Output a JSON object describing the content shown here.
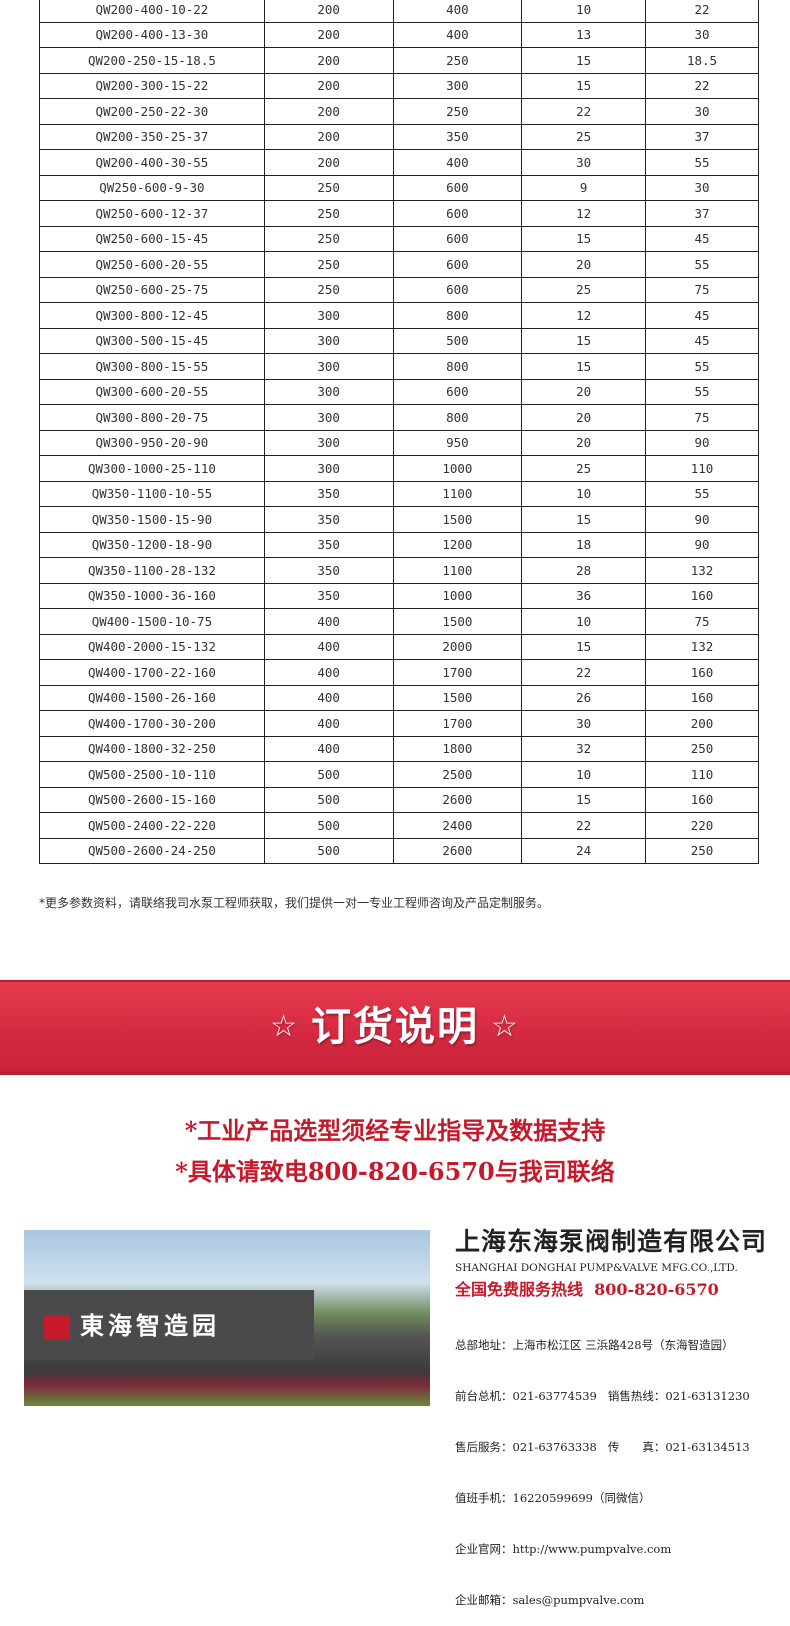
{
  "table": {
    "rows": [
      [
        "QW200-400-10-22",
        "200",
        "400",
        "10",
        "22"
      ],
      [
        "QW200-400-13-30",
        "200",
        "400",
        "13",
        "30"
      ],
      [
        "QW200-250-15-18.5",
        "200",
        "250",
        "15",
        "18.5"
      ],
      [
        "QW200-300-15-22",
        "200",
        "300",
        "15",
        "22"
      ],
      [
        "QW200-250-22-30",
        "200",
        "250",
        "22",
        "30"
      ],
      [
        "QW200-350-25-37",
        "200",
        "350",
        "25",
        "37"
      ],
      [
        "QW200-400-30-55",
        "200",
        "400",
        "30",
        "55"
      ],
      [
        "QW250-600-9-30",
        "250",
        "600",
        "9",
        "30"
      ],
      [
        "QW250-600-12-37",
        "250",
        "600",
        "12",
        "37"
      ],
      [
        "QW250-600-15-45",
        "250",
        "600",
        "15",
        "45"
      ],
      [
        "QW250-600-20-55",
        "250",
        "600",
        "20",
        "55"
      ],
      [
        "QW250-600-25-75",
        "250",
        "600",
        "25",
        "75"
      ],
      [
        "QW300-800-12-45",
        "300",
        "800",
        "12",
        "45"
      ],
      [
        "QW300-500-15-45",
        "300",
        "500",
        "15",
        "45"
      ],
      [
        "QW300-800-15-55",
        "300",
        "800",
        "15",
        "55"
      ],
      [
        "QW300-600-20-55",
        "300",
        "600",
        "20",
        "55"
      ],
      [
        "QW300-800-20-75",
        "300",
        "800",
        "20",
        "75"
      ],
      [
        "QW300-950-20-90",
        "300",
        "950",
        "20",
        "90"
      ],
      [
        "QW300-1000-25-110",
        "300",
        "1000",
        "25",
        "110"
      ],
      [
        "QW350-1100-10-55",
        "350",
        "1100",
        "10",
        "55"
      ],
      [
        "QW350-1500-15-90",
        "350",
        "1500",
        "15",
        "90"
      ],
      [
        "QW350-1200-18-90",
        "350",
        "1200",
        "18",
        "90"
      ],
      [
        "QW350-1100-28-132",
        "350",
        "1100",
        "28",
        "132"
      ],
      [
        "QW350-1000-36-160",
        "350",
        "1000",
        "36",
        "160"
      ],
      [
        "QW400-1500-10-75",
        "400",
        "1500",
        "10",
        "75"
      ],
      [
        "QW400-2000-15-132",
        "400",
        "2000",
        "15",
        "132"
      ],
      [
        "QW400-1700-22-160",
        "400",
        "1700",
        "22",
        "160"
      ],
      [
        "QW400-1500-26-160",
        "400",
        "1500",
        "26",
        "160"
      ],
      [
        "QW400-1700-30-200",
        "400",
        "1700",
        "30",
        "200"
      ],
      [
        "QW400-1800-32-250",
        "400",
        "1800",
        "32",
        "250"
      ],
      [
        "QW500-2500-10-110",
        "500",
        "2500",
        "10",
        "110"
      ],
      [
        "QW500-2600-15-160",
        "500",
        "2600",
        "15",
        "160"
      ],
      [
        "QW500-2400-22-220",
        "500",
        "2400",
        "22",
        "220"
      ],
      [
        "QW500-2600-24-250",
        "500",
        "2600",
        "24",
        "250"
      ]
    ]
  },
  "note": "*更多参数资料，请联络我司水泵工程师获取，我们提供一对一专业工程师咨询及产品定制服务。",
  "banner": {
    "star": "☆",
    "title": "订货说明"
  },
  "order_lines": [
    "*工业产品选型须经专业指导及数据支持",
    "*具体请致电800-820-6570与我司联络"
  ],
  "photo": {
    "sign": "東海智造园"
  },
  "company": {
    "name_cn": "上海东海泵阀制造有限公司",
    "name_en": "SHANGHAI DONGHAI PUMP&VALVE MFG.CO.,LTD.",
    "hotline": "全国免费服务热线  800-820-6570",
    "lines": [
      "总部地址：上海市松江区 三浜路428号（东海智造园）",
      "前台总机：021-63774539   销售热线：021-63131230",
      "售后服务：021-63763338   传　　真：021-63134513",
      "值班手机：16220599699（同微信）",
      "企业官网：http://www.pumpvalve.com",
      "企业邮箱：sales@pumpvalve.com"
    ]
  },
  "colors": {
    "accent": "#c41a2c"
  }
}
